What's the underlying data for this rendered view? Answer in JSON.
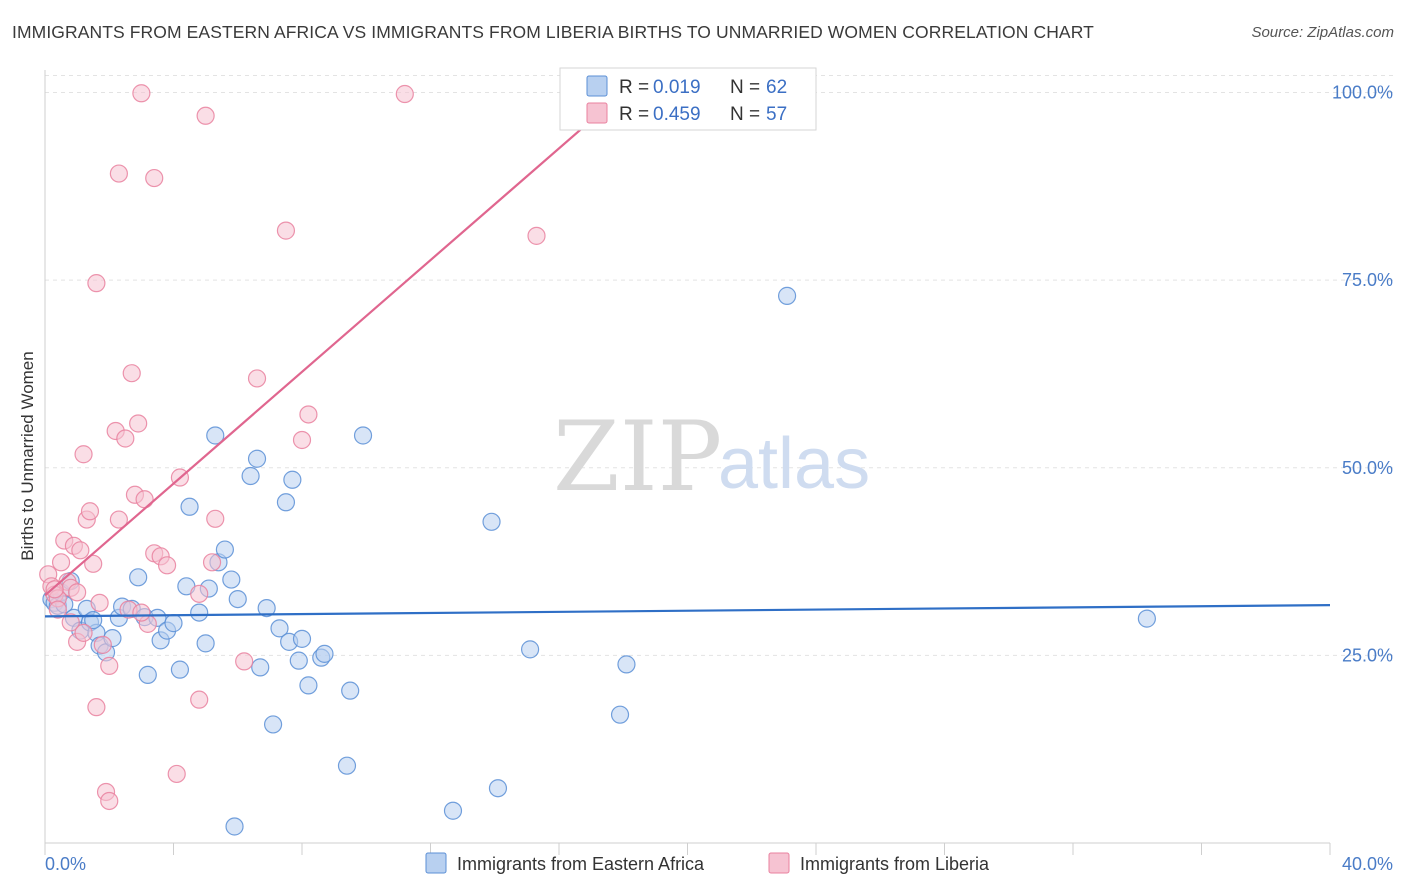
{
  "title": "IMMIGRANTS FROM EASTERN AFRICA VS IMMIGRANTS FROM LIBERIA BIRTHS TO UNMARRIED WOMEN CORRELATION CHART",
  "source": "Source: ZipAtlas.com",
  "watermark": {
    "zip": "ZIP",
    "atlas": "atlas"
  },
  "legend": {
    "r_label": "R =",
    "n_label": "N =",
    "items": [
      {
        "r": "0.019",
        "n": "62"
      },
      {
        "r": "0.459",
        "n": "57"
      }
    ]
  },
  "chart_data": {
    "type": "scatter",
    "title": "IMMIGRANTS FROM EASTERN AFRICA VS IMMIGRANTS FROM LIBERIA BIRTHS TO UNMARRIED WOMEN CORRELATION CHART",
    "xlabel": "",
    "ylabel": "Births to Unmarried Women",
    "xlim": [
      0,
      40
    ],
    "ylim": [
      0,
      103
    ],
    "x_tick_labels": [
      "0.0%",
      "40.0%"
    ],
    "y_ticks": [
      {
        "value": 25,
        "label": "25.0%"
      },
      {
        "value": 50,
        "label": "50.0%"
      },
      {
        "value": 75,
        "label": "75.0%"
      },
      {
        "value": 100,
        "label": "100.0%"
      }
    ],
    "grid": true,
    "legend_position": "top-center",
    "series": [
      {
        "name": "Immigrants from Eastern Africa",
        "color": "#5b8fd6",
        "fill": "#b8d0f0",
        "r": 0.019,
        "n": 62,
        "trend": {
          "x0": 0,
          "y0": 30.2,
          "x1": 40,
          "y1": 31.7,
          "color": "#2f6fc6"
        },
        "points": [
          [
            0.2,
            32.5
          ],
          [
            0.3,
            32
          ],
          [
            0.4,
            31.6
          ],
          [
            0.5,
            33.4
          ],
          [
            0.6,
            31.8
          ],
          [
            0.8,
            34.9
          ],
          [
            0.9,
            30
          ],
          [
            1.1,
            28.3
          ],
          [
            1.3,
            31.2
          ],
          [
            1.4,
            29.4
          ],
          [
            1.6,
            28
          ],
          [
            1.7,
            26.3
          ],
          [
            1.9,
            25.4
          ],
          [
            2.1,
            27.3
          ],
          [
            2.3,
            30
          ],
          [
            2.4,
            31.5
          ],
          [
            2.7,
            31.2
          ],
          [
            2.9,
            35.4
          ],
          [
            3.1,
            30.1
          ],
          [
            3.2,
            22.4
          ],
          [
            3.5,
            30
          ],
          [
            3.6,
            27
          ],
          [
            3.8,
            28.3
          ],
          [
            4.0,
            29.3
          ],
          [
            4.2,
            23.1
          ],
          [
            4.4,
            34.2
          ],
          [
            4.5,
            44.8
          ],
          [
            4.8,
            30.7
          ],
          [
            5.0,
            26.6
          ],
          [
            5.1,
            33.9
          ],
          [
            5.3,
            54.3
          ],
          [
            5.4,
            37.4
          ],
          [
            5.6,
            39.1
          ],
          [
            5.8,
            35.1
          ],
          [
            6.0,
            32.5
          ],
          [
            6.4,
            48.9
          ],
          [
            6.6,
            51.2
          ],
          [
            6.7,
            23.4
          ],
          [
            6.9,
            31.3
          ],
          [
            7.1,
            15.8
          ],
          [
            7.3,
            28.6
          ],
          [
            7.5,
            45.4
          ],
          [
            7.6,
            26.8
          ],
          [
            7.7,
            48.4
          ],
          [
            7.9,
            24.3
          ],
          [
            8.0,
            27.2
          ],
          [
            8.2,
            21
          ],
          [
            8.6,
            24.7
          ],
          [
            8.7,
            25.2
          ],
          [
            9.4,
            10.3
          ],
          [
            9.5,
            20.3
          ],
          [
            9.9,
            54.3
          ],
          [
            12.7,
            4.3
          ],
          [
            13.9,
            42.8
          ],
          [
            14.1,
            7.3
          ],
          [
            15.1,
            25.8
          ],
          [
            17.9,
            17.1
          ],
          [
            18.1,
            23.8
          ],
          [
            23.1,
            72.9
          ],
          [
            34.3,
            29.9
          ],
          [
            5.9,
            2.2
          ],
          [
            1.5,
            29.7
          ]
        ]
      },
      {
        "name": "Immigrants from Liberia",
        "color": "#e9819f",
        "fill": "#f6c3d2",
        "r": 0.459,
        "n": 57,
        "trend": {
          "x0": 0,
          "y0": 33,
          "x1": 18,
          "y1": 100,
          "color": "#e0668f"
        },
        "points": [
          [
            0.1,
            35.8
          ],
          [
            0.2,
            34.2
          ],
          [
            0.3,
            33.1
          ],
          [
            0.4,
            32.6
          ],
          [
            0.4,
            31.1
          ],
          [
            0.5,
            37.4
          ],
          [
            0.6,
            40.3
          ],
          [
            0.7,
            34.8
          ],
          [
            0.8,
            29.4
          ],
          [
            0.8,
            34
          ],
          [
            0.9,
            39.6
          ],
          [
            1.0,
            26.8
          ],
          [
            1.1,
            39
          ],
          [
            1.2,
            28
          ],
          [
            1.2,
            51.8
          ],
          [
            1.3,
            43.1
          ],
          [
            1.4,
            44.2
          ],
          [
            1.5,
            37.2
          ],
          [
            1.6,
            18.1
          ],
          [
            1.6,
            74.6
          ],
          [
            1.7,
            32
          ],
          [
            1.8,
            26.4
          ],
          [
            1.9,
            6.8
          ],
          [
            2.0,
            23.6
          ],
          [
            2.0,
            5.6
          ],
          [
            2.2,
            54.9
          ],
          [
            2.3,
            43.1
          ],
          [
            2.3,
            89.2
          ],
          [
            2.5,
            53.9
          ],
          [
            2.6,
            31.1
          ],
          [
            2.7,
            62.6
          ],
          [
            2.8,
            46.4
          ],
          [
            2.9,
            55.9
          ],
          [
            3.0,
            99.9
          ],
          [
            3.1,
            45.8
          ],
          [
            3.2,
            29.2
          ],
          [
            3.4,
            38.6
          ],
          [
            3.4,
            88.6
          ],
          [
            3.6,
            38.2
          ],
          [
            3.8,
            37
          ],
          [
            4.1,
            9.2
          ],
          [
            4.2,
            48.7
          ],
          [
            4.8,
            33.2
          ],
          [
            4.8,
            19.1
          ],
          [
            5.0,
            96.9
          ],
          [
            5.3,
            43.2
          ],
          [
            5.2,
            37.4
          ],
          [
            6.2,
            24.2
          ],
          [
            6.6,
            61.9
          ],
          [
            7.5,
            81.6
          ],
          [
            8.0,
            53.7
          ],
          [
            8.2,
            57.1
          ],
          [
            11.2,
            99.8
          ],
          [
            15.3,
            80.9
          ],
          [
            3.0,
            30.7
          ],
          [
            1.0,
            33.4
          ],
          [
            0.3,
            33.8
          ]
        ]
      }
    ]
  }
}
